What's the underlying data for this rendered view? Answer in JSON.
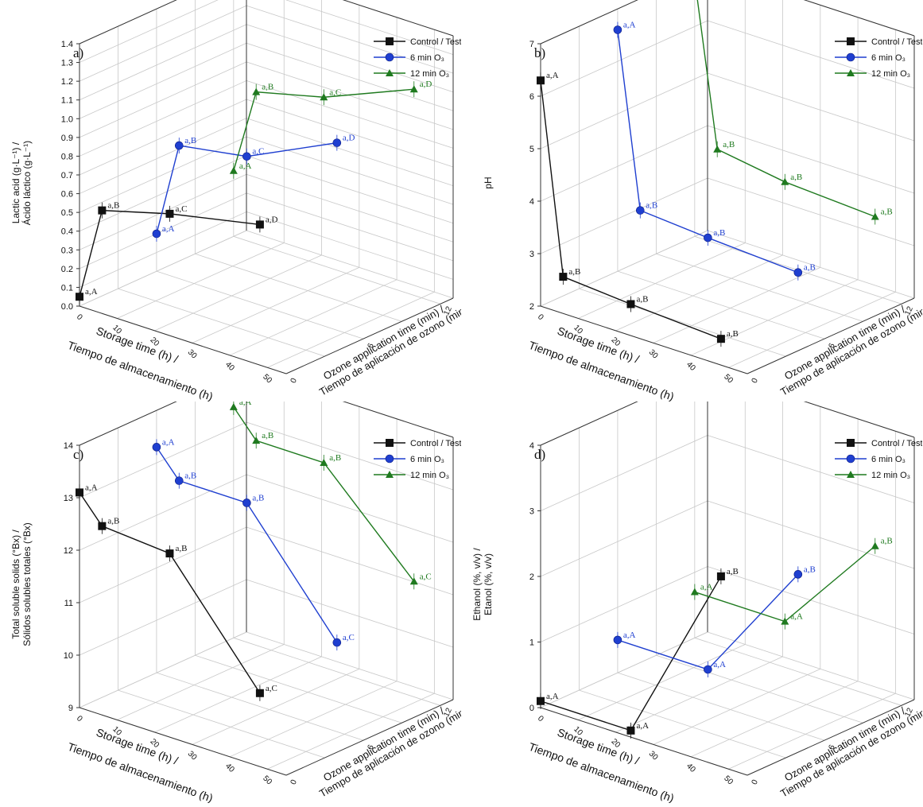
{
  "panels": [
    {
      "chart_data": {
        "type": "line",
        "panel_tag": "a)",
        "ylabel_line1": "Lactic acid (g·L⁻¹) /",
        "ylabel_line2": "Ácido láctico (g·L⁻¹)",
        "xlabel_line1": "Storage time (h) /",
        "xlabel_line2": "Tiempo de almacenamiento (h)",
        "zlabel_line1": "Ozone application time (min) /",
        "zlabel_line2": "Tiempo de aplicación de ozono (min)",
        "ylim": [
          0,
          1.4
        ],
        "y_ticks": [
          "0.0",
          "0.1",
          "0.2",
          "0.3",
          "0.4",
          "0.5",
          "0.6",
          "0.7",
          "0.8",
          "0.9",
          "1.0",
          "1.1",
          "1.2",
          "1.3",
          "1.4"
        ],
        "x_ticks": [
          "0",
          "10",
          "20",
          "30",
          "40",
          "50"
        ],
        "z_ticks": [
          "0",
          "6",
          "12"
        ],
        "legend": [
          "Control / Testigo",
          "6 min O₃",
          "12 min O₃"
        ],
        "series": [
          {
            "name": "Control / Testigo",
            "ozone_min": 0,
            "x": [
              0,
              6,
              24,
              48
            ],
            "y": [
              0.05,
              0.55,
              0.65,
              0.75
            ],
            "labels": [
              "a,A",
              "a,B",
              "a,C",
              "a,D"
            ]
          },
          {
            "name": "6 min O₃",
            "ozone_min": 6,
            "x": [
              0,
              6,
              24,
              48
            ],
            "y": [
              0.2,
              0.71,
              0.77,
              1.0
            ],
            "labels": [
              "a,A",
              "a,B",
              "a,C",
              "a,D"
            ]
          },
          {
            "name": "12 min O₃",
            "ozone_min": 12,
            "x": [
              0,
              6,
              24,
              48
            ],
            "y": [
              0.35,
              0.81,
              0.9,
              1.1
            ],
            "labels": [
              "a,A",
              "a,B",
              "a,C",
              "a,D"
            ]
          }
        ]
      }
    },
    {
      "chart_data": {
        "type": "line",
        "panel_tag": "b)",
        "ylabel_line1": "pH",
        "ylabel_line2": "",
        "xlabel_line1": "Storage time (h) /",
        "xlabel_line2": "Tiempo de almacenamiento (h)",
        "zlabel_line1": "Ozone application time (min) /",
        "zlabel_line2": "Tiempo de aplicación de ozono (min)",
        "ylim": [
          2,
          7
        ],
        "y_ticks": [
          "2",
          "3",
          "4",
          "5",
          "6",
          "7"
        ],
        "x_ticks": [
          "0",
          "10",
          "20",
          "30",
          "40",
          "50"
        ],
        "z_ticks": [
          "0",
          "6",
          "12"
        ],
        "legend": [
          "Control / Testigo",
          "6 min O₃",
          "12 min O₃"
        ],
        "series": [
          {
            "name": "Control / Testigo",
            "ozone_min": 0,
            "x": [
              0,
              6,
              24,
              48
            ],
            "y": [
              6.3,
              2.7,
              2.6,
              2.5
            ],
            "labels": [
              "a,A",
              "a,B",
              "a,B",
              "a,B"
            ]
          },
          {
            "name": "6 min O₃",
            "ozone_min": 6,
            "x": [
              0,
              6,
              24,
              48
            ],
            "y": [
              6.6,
              3.3,
              3.2,
              3.1
            ],
            "labels": [
              "a,A",
              "a,B",
              "a,B",
              "a,B"
            ]
          },
          {
            "name": "12 min O₃",
            "ozone_min": 12,
            "x": [
              0,
              6,
              24,
              48
            ],
            "y": [
              6.9,
              3.8,
              3.6,
              3.5
            ],
            "labels": [
              "a,A",
              "a,B",
              "a,B",
              "a,B"
            ]
          }
        ]
      }
    },
    {
      "chart_data": {
        "type": "line",
        "panel_tag": "c)",
        "ylabel_line1": "Total soluble solids (°Bx) /",
        "ylabel_line2": "Sólidos solubles totales (°Bx)",
        "xlabel_line1": "Storage time (h) /",
        "xlabel_line2": "Tiempo de almacenamiento (h)",
        "zlabel_line1": "Ozone application time (min) /",
        "zlabel_line2": "Tiempo de aplicación de ozono (min)",
        "ylim": [
          9,
          14
        ],
        "y_ticks": [
          "9",
          "10",
          "11",
          "12",
          "13",
          "14"
        ],
        "x_ticks": [
          "0",
          "10",
          "20",
          "30",
          "40",
          "50"
        ],
        "z_ticks": [
          "0",
          "6",
          "12"
        ],
        "legend": [
          "Control / Testigo",
          "6 min O₃",
          "12 min O₃"
        ],
        "series": [
          {
            "name": "Control / Testigo",
            "ozone_min": 0,
            "x": [
              0,
              6,
              24,
              48
            ],
            "y": [
              13.1,
              12.6,
              12.5,
              10.4
            ],
            "labels": [
              "a,A",
              "a,B",
              "a,B",
              "a,C"
            ]
          },
          {
            "name": "6 min O₃",
            "ozone_min": 6,
            "x": [
              0,
              6,
              24,
              48
            ],
            "y": [
              13.3,
              12.8,
              12.8,
              10.7
            ],
            "labels": [
              "a,A",
              "a,B",
              "a,B",
              "a,C"
            ]
          },
          {
            "name": "12 min O₃",
            "ozone_min": 12,
            "x": [
              0,
              6,
              24,
              48
            ],
            "y": [
              13.4,
              12.9,
              12.9,
              11.2
            ],
            "labels": [
              "a,A",
              "a,B",
              "a,B",
              "a,C"
            ]
          }
        ]
      }
    },
    {
      "chart_data": {
        "type": "line",
        "panel_tag": "d)",
        "ylabel_line1": "Ethanol (%, v/v) /",
        "ylabel_line2": "Etanol (%, v/v)",
        "xlabel_line1": "Storage time (h) /",
        "xlabel_line2": "Tiempo de almacenamiento (h)",
        "zlabel_line1": "Ozone application time (min) /",
        "zlabel_line2": "Tiempo de aplicación de ozono (min)",
        "ylim": [
          0,
          4
        ],
        "y_ticks": [
          "0",
          "1",
          "2",
          "3",
          "4"
        ],
        "x_ticks": [
          "0",
          "10",
          "20",
          "30",
          "40",
          "50"
        ],
        "z_ticks": [
          "0",
          "6",
          "12"
        ],
        "legend": [
          "Control / Testigo",
          "6 min O₃",
          "12 min O₃"
        ],
        "series": [
          {
            "name": "Control / Testigo",
            "ozone_min": 0,
            "x": [
              0,
              24,
              48
            ],
            "y": [
              0.1,
              0.1,
              2.9
            ],
            "labels": [
              "a,A",
              "a,A",
              "a,B"
            ]
          },
          {
            "name": "6 min O₃",
            "ozone_min": 6,
            "x": [
              0,
              24,
              48
            ],
            "y": [
              0.5,
              0.5,
              2.4
            ],
            "labels": [
              "a,A",
              "a,A",
              "a,B"
            ]
          },
          {
            "name": "12 min O₃",
            "ozone_min": 12,
            "x": [
              0,
              24,
              48
            ],
            "y": [
              0.7,
              0.7,
              2.3
            ],
            "labels": [
              "a,A",
              "a,A",
              "a,B"
            ]
          }
        ]
      }
    }
  ],
  "colors": {
    "control": "#111111",
    "ozone6": "#1f3fd0",
    "ozone12": "#1f7a1f",
    "grid": "#c8c8c8",
    "axis": "#333333",
    "text": "#111111"
  }
}
